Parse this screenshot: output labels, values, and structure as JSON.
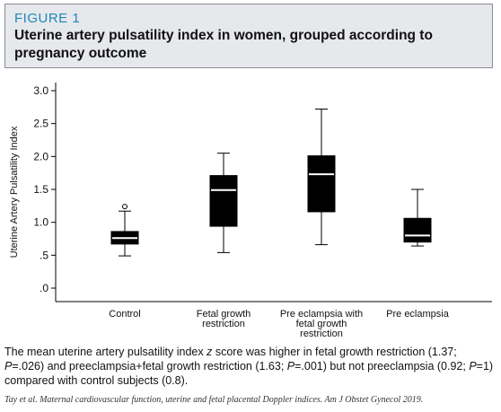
{
  "header": {
    "figure_label": "FIGURE 1",
    "title": "Uterine artery pulsatility index in women, grouped according to pregnancy outcome"
  },
  "chart_data": {
    "type": "boxplot",
    "ylabel": "Uterine Artery Pulsatility Index",
    "xlabel": "",
    "ylim": [
      0,
      3.0
    ],
    "yticks": [
      0.0,
      0.5,
      1.0,
      1.5,
      2.0,
      2.5,
      3.0
    ],
    "ytick_labels": [
      ".0",
      ".5",
      "1.0",
      "1.5",
      "2.0",
      "2.5",
      "3.0"
    ],
    "grid": false,
    "colors": {
      "box": "#000000",
      "median": "#ffffff"
    },
    "categories": [
      {
        "label_lines": [
          "Control"
        ],
        "min": 0.49,
        "q1": 0.67,
        "median": 0.76,
        "q3": 0.86,
        "max": 1.17,
        "outliers": [
          1.24
        ]
      },
      {
        "label_lines": [
          "Fetal growth",
          "restriction"
        ],
        "min": 0.54,
        "q1": 0.94,
        "median": 1.49,
        "q3": 1.71,
        "max": 2.05,
        "outliers": []
      },
      {
        "label_lines": [
          "Pre eclampsia with",
          "fetal growth",
          "restriction"
        ],
        "min": 0.66,
        "q1": 1.16,
        "median": 1.73,
        "q3": 2.01,
        "max": 2.72,
        "outliers": []
      },
      {
        "label_lines": [
          "Pre eclampsia"
        ],
        "min": 0.64,
        "q1": 0.7,
        "median": 0.8,
        "q3": 1.06,
        "max": 1.5,
        "outliers": []
      }
    ]
  },
  "caption": {
    "part1": "The mean uterine artery pulsatility index ",
    "z": "z",
    "part2": " score was higher in fetal growth restriction (1.37; ",
    "p1": "P",
    "part3": "=.026) and preeclampsia+fetal growth restriction (1.63; ",
    "p2": "P",
    "part4": "=.001) but not preeclampsia (0.92; ",
    "p3": "P",
    "part5": "=1) compared with control subjects (0.8)."
  },
  "citation": "Tay et al. Maternal cardiovascular function, uterine and fetal placental Doppler indices. Am J Obstet Gynecol 2019."
}
